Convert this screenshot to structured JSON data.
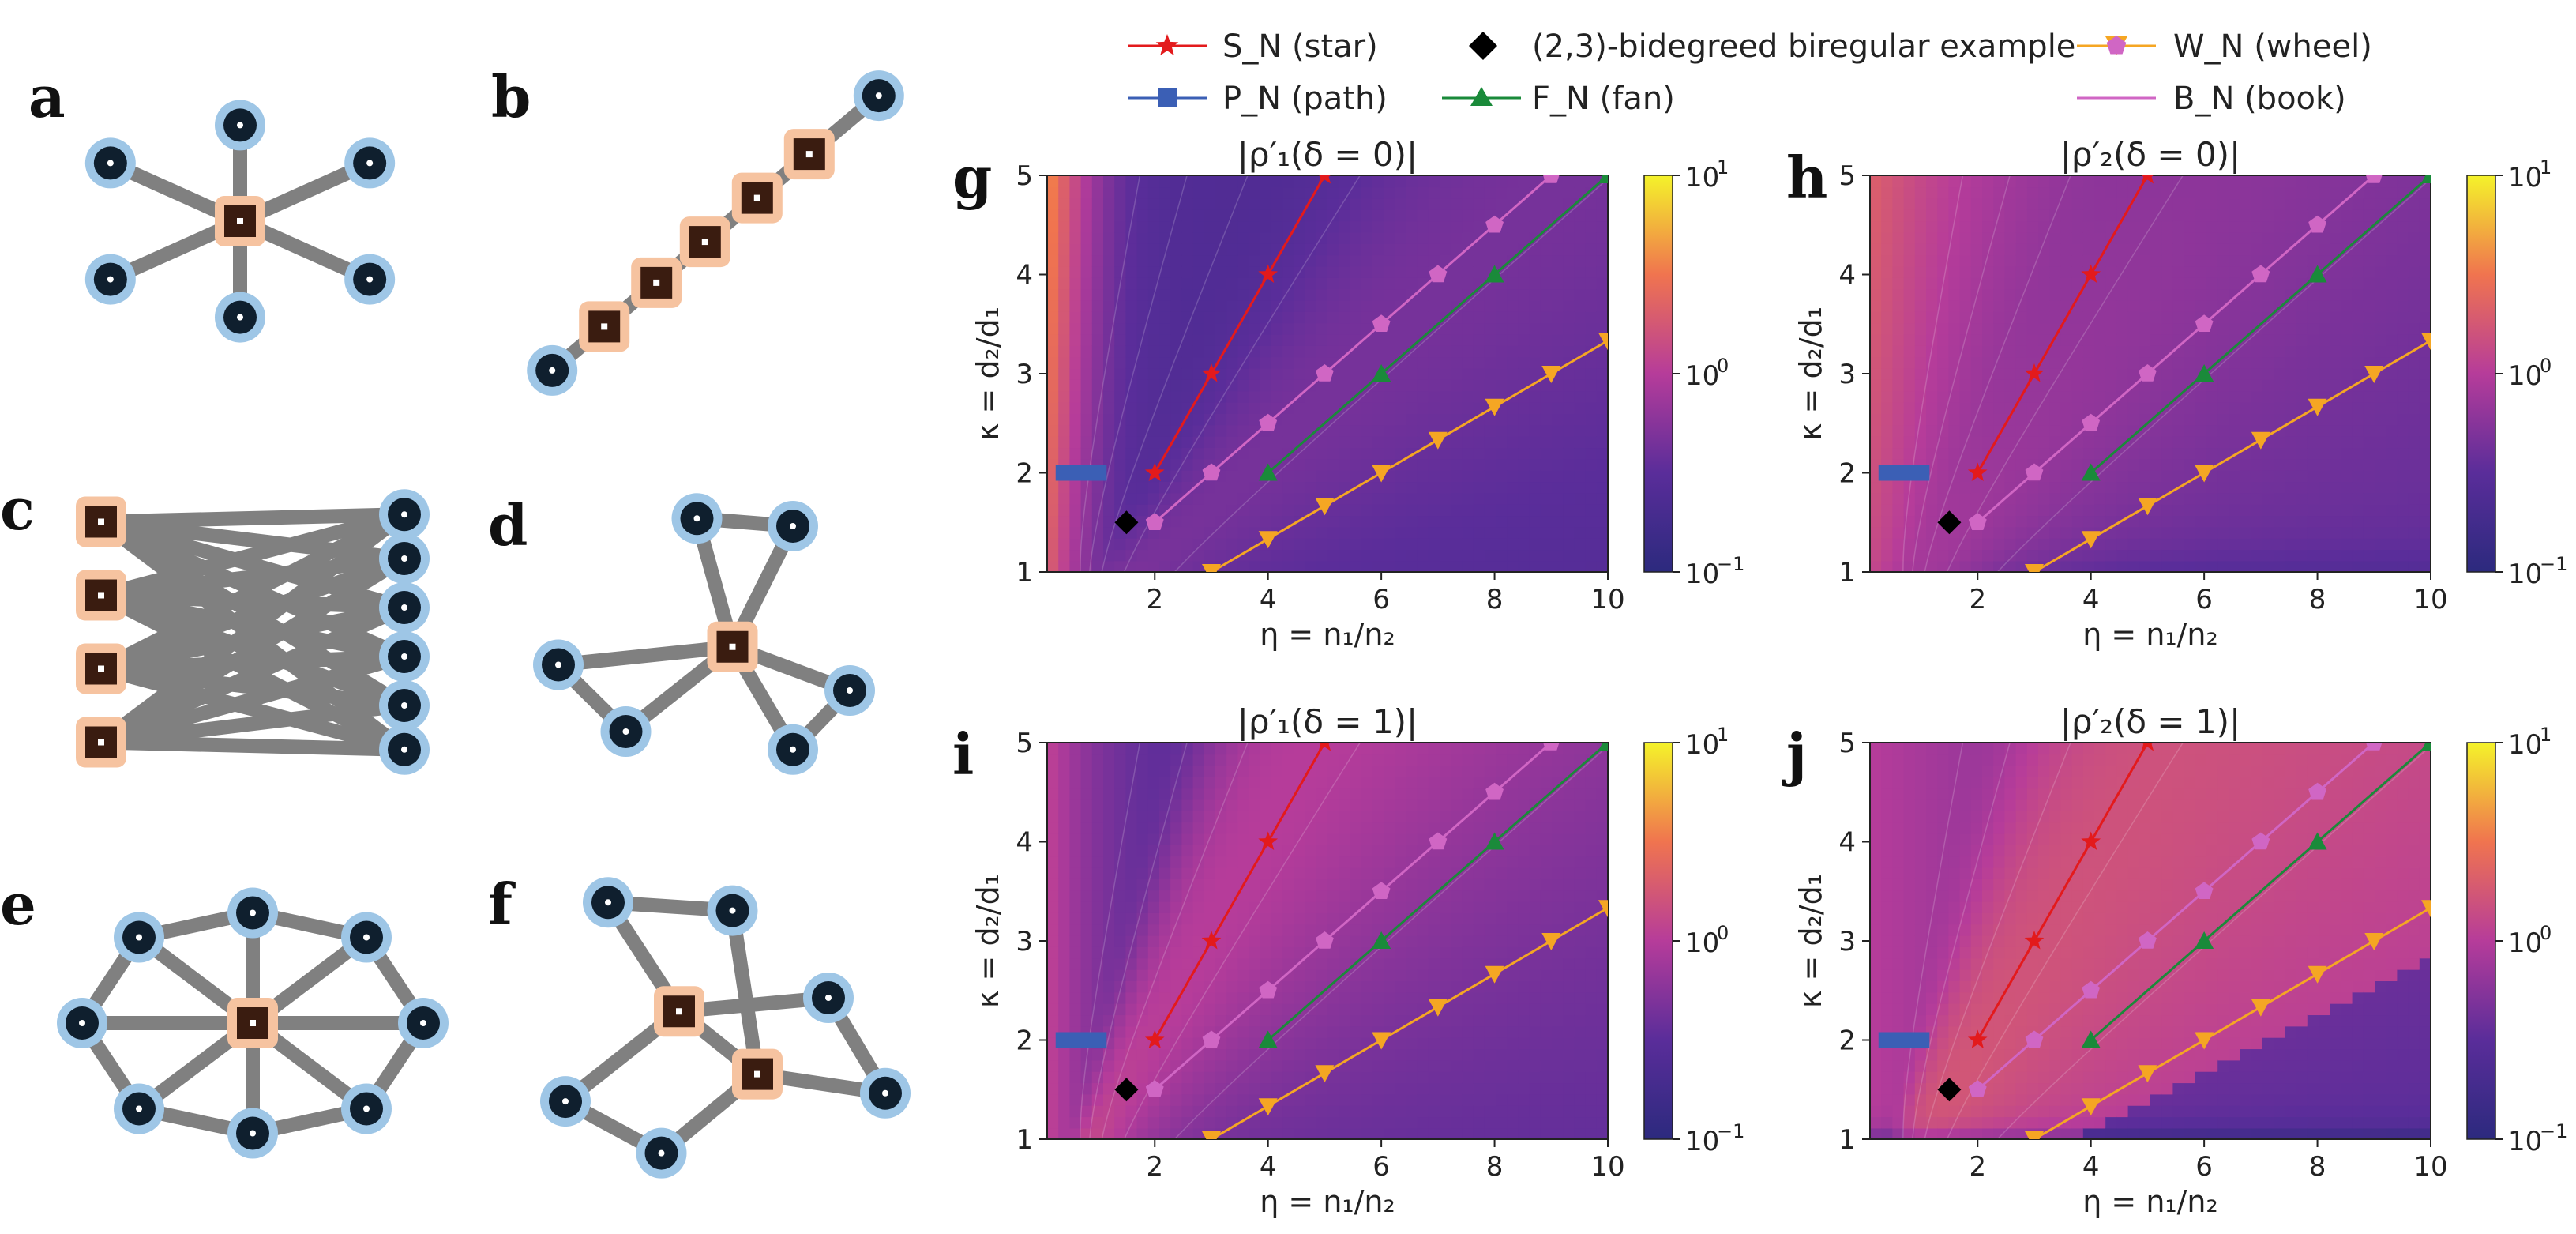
{
  "panel_labels": {
    "a": "a",
    "b": "b",
    "c": "c",
    "d": "d",
    "e": "e",
    "f": "f",
    "g": "g",
    "h": "h",
    "i": "i",
    "j": "j"
  },
  "legend": [
    {
      "id": "star",
      "label": "S_N (star)",
      "color": "#e31a1c",
      "marker": "star"
    },
    {
      "id": "path",
      "label": "P_N (path)",
      "color": "#3b5fb5",
      "marker": "square"
    },
    {
      "id": "bireg",
      "label": "(2,3)-bidegreed biregular example",
      "color": "#000000",
      "marker": "diamond"
    },
    {
      "id": "fan",
      "label": "F_N (fan)",
      "color": "#1a8a3a",
      "marker": "triangle-up"
    },
    {
      "id": "wheel",
      "label": "W_N (wheel)",
      "color": "#f5a623",
      "marker": "triangle-down"
    },
    {
      "id": "book",
      "label": "B_N (book)",
      "color": "#d066c4",
      "marker": "pentagon"
    }
  ],
  "axis_labels": {
    "xlabel": "η = n₁/n₂",
    "ylabel": "κ = d₂/d₁"
  },
  "colorbar_ticks": [
    "10",
    "10",
    "10"
  ],
  "colorbar_exps": [
    "1",
    "0",
    "−1"
  ],
  "graphs": {
    "a": {
      "nodes": [
        [
          0.5,
          0.5,
          "hub"
        ],
        [
          0.5,
          0.12,
          "leaf"
        ],
        [
          0.5,
          0.88,
          "leaf"
        ],
        [
          0.12,
          0.27,
          "leaf"
        ],
        [
          0.88,
          0.27,
          "leaf"
        ],
        [
          0.12,
          0.73,
          "leaf"
        ],
        [
          0.88,
          0.73,
          "leaf"
        ]
      ],
      "edges": [
        [
          0,
          1
        ],
        [
          0,
          2
        ],
        [
          0,
          3
        ],
        [
          0,
          4
        ],
        [
          0,
          5
        ],
        [
          0,
          6
        ]
      ]
    },
    "b": {
      "nodes": [
        [
          0.03,
          0.97,
          "leaf"
        ],
        [
          0.18,
          0.82,
          "hub"
        ],
        [
          0.33,
          0.67,
          "hub"
        ],
        [
          0.47,
          0.53,
          "hub"
        ],
        [
          0.62,
          0.38,
          "hub"
        ],
        [
          0.77,
          0.23,
          "hub"
        ],
        [
          0.97,
          0.03,
          "leaf"
        ]
      ],
      "edges": [
        [
          0,
          1
        ],
        [
          1,
          2
        ],
        [
          2,
          3
        ],
        [
          3,
          4
        ],
        [
          4,
          5
        ],
        [
          5,
          6
        ]
      ]
    },
    "c": {
      "nodes": [
        [
          0.1,
          0.05,
          "hub"
        ],
        [
          0.1,
          0.35,
          "hub"
        ],
        [
          0.1,
          0.65,
          "hub"
        ],
        [
          0.1,
          0.95,
          "hub"
        ],
        [
          0.9,
          0.02,
          "leaf"
        ],
        [
          0.9,
          0.2,
          "leaf"
        ],
        [
          0.9,
          0.4,
          "leaf"
        ],
        [
          0.9,
          0.6,
          "leaf"
        ],
        [
          0.9,
          0.8,
          "leaf"
        ],
        [
          0.9,
          0.98,
          "leaf"
        ]
      ],
      "edges": [
        [
          0,
          4
        ],
        [
          0,
          5
        ],
        [
          0,
          6
        ],
        [
          0,
          7
        ],
        [
          0,
          8
        ],
        [
          0,
          9
        ],
        [
          1,
          4
        ],
        [
          1,
          5
        ],
        [
          1,
          6
        ],
        [
          1,
          7
        ],
        [
          1,
          8
        ],
        [
          1,
          9
        ],
        [
          2,
          4
        ],
        [
          2,
          5
        ],
        [
          2,
          6
        ],
        [
          2,
          7
        ],
        [
          2,
          8
        ],
        [
          2,
          9
        ],
        [
          3,
          4
        ],
        [
          3,
          5
        ],
        [
          3,
          6
        ],
        [
          3,
          7
        ],
        [
          3,
          8
        ],
        [
          3,
          9
        ]
      ]
    },
    "d": {
      "nodes": [
        [
          0.55,
          0.55,
          "hub"
        ],
        [
          0.45,
          0.05,
          "leaf"
        ],
        [
          0.72,
          0.08,
          "leaf"
        ],
        [
          0.06,
          0.62,
          "leaf"
        ],
        [
          0.25,
          0.88,
          "leaf"
        ],
        [
          0.88,
          0.72,
          "leaf"
        ],
        [
          0.72,
          0.95,
          "leaf"
        ]
      ],
      "edges": [
        [
          0,
          1
        ],
        [
          0,
          2
        ],
        [
          1,
          2
        ],
        [
          0,
          3
        ],
        [
          0,
          4
        ],
        [
          3,
          4
        ],
        [
          0,
          5
        ],
        [
          0,
          6
        ],
        [
          5,
          6
        ]
      ]
    },
    "e": {
      "nodes": [
        [
          0.5,
          0.5,
          "hub"
        ],
        [
          0.5,
          0.05,
          "leaf"
        ],
        [
          0.2,
          0.15,
          "leaf"
        ],
        [
          0.8,
          0.15,
          "leaf"
        ],
        [
          0.05,
          0.5,
          "leaf"
        ],
        [
          0.95,
          0.5,
          "leaf"
        ],
        [
          0.2,
          0.85,
          "leaf"
        ],
        [
          0.8,
          0.85,
          "leaf"
        ],
        [
          0.5,
          0.95,
          "leaf"
        ]
      ],
      "edges": [
        [
          0,
          1
        ],
        [
          0,
          2
        ],
        [
          0,
          3
        ],
        [
          0,
          4
        ],
        [
          0,
          5
        ],
        [
          0,
          6
        ],
        [
          0,
          7
        ],
        [
          0,
          8
        ],
        [
          1,
          2
        ],
        [
          2,
          4
        ],
        [
          4,
          6
        ],
        [
          6,
          8
        ],
        [
          8,
          7
        ],
        [
          7,
          5
        ],
        [
          5,
          3
        ],
        [
          3,
          1
        ]
      ]
    },
    "f": {
      "nodes": [
        [
          0.4,
          0.45,
          "hub"
        ],
        [
          0.62,
          0.68,
          "hub"
        ],
        [
          0.2,
          0.05,
          "leaf"
        ],
        [
          0.55,
          0.08,
          "leaf"
        ],
        [
          0.82,
          0.4,
          "leaf"
        ],
        [
          0.98,
          0.75,
          "leaf"
        ],
        [
          0.08,
          0.78,
          "leaf"
        ],
        [
          0.35,
          0.97,
          "leaf"
        ]
      ],
      "edges": [
        [
          0,
          2
        ],
        [
          2,
          3
        ],
        [
          3,
          1
        ],
        [
          0,
          4
        ],
        [
          4,
          5
        ],
        [
          5,
          1
        ],
        [
          0,
          6
        ],
        [
          6,
          7
        ],
        [
          7,
          1
        ],
        [
          0,
          1
        ]
      ]
    }
  },
  "chart_data": [
    {
      "panel": "g",
      "type": "heatmap",
      "title": "|ρ′₁(δ = 0)|",
      "variant": "r1d0",
      "xlim": [
        0.1,
        10
      ],
      "ylim": [
        1,
        5
      ],
      "xticks": [
        2,
        4,
        6,
        8,
        10
      ],
      "yticks": [
        1,
        2,
        3,
        4,
        5
      ],
      "clim": [
        0.1,
        10
      ],
      "color_scale": "log"
    },
    {
      "panel": "h",
      "type": "heatmap",
      "title": "|ρ′₂(δ = 0)|",
      "variant": "r2d0",
      "xlim": [
        0.1,
        10
      ],
      "ylim": [
        1,
        5
      ],
      "xticks": [
        2,
        4,
        6,
        8,
        10
      ],
      "yticks": [
        1,
        2,
        3,
        4,
        5
      ],
      "clim": [
        0.1,
        10
      ],
      "color_scale": "log"
    },
    {
      "panel": "i",
      "type": "heatmap",
      "title": "|ρ′₁(δ = 1)|",
      "variant": "r1d1",
      "xlim": [
        0.1,
        10
      ],
      "ylim": [
        1,
        5
      ],
      "xticks": [
        2,
        4,
        6,
        8,
        10
      ],
      "yticks": [
        1,
        2,
        3,
        4,
        5
      ],
      "clim": [
        0.1,
        10
      ],
      "color_scale": "log"
    },
    {
      "panel": "j",
      "type": "heatmap",
      "title": "|ρ′₂(δ = 1)|",
      "variant": "r2d1",
      "xlim": [
        0.1,
        10
      ],
      "ylim": [
        1,
        5
      ],
      "xticks": [
        2,
        4,
        6,
        8,
        10
      ],
      "yticks": [
        1,
        2,
        3,
        4,
        5
      ],
      "clim": [
        0.1,
        10
      ],
      "color_scale": "log"
    }
  ],
  "series": {
    "star": {
      "x": [
        2,
        3,
        4,
        5
      ],
      "y": [
        2,
        3,
        4,
        5
      ]
    },
    "book": {
      "x": [
        2,
        3,
        4,
        5,
        6,
        7,
        8,
        9
      ],
      "y": [
        1.5,
        2,
        2.5,
        3,
        3.5,
        4,
        4.5,
        5
      ]
    },
    "fan": {
      "x": [
        4,
        6,
        8,
        10
      ],
      "y": [
        2,
        3,
        4,
        5
      ]
    },
    "wheel": {
      "x": [
        3,
        4,
        5,
        6,
        7,
        8,
        9,
        10
      ],
      "y": [
        1,
        1.333,
        1.667,
        2,
        2.333,
        2.667,
        3,
        3.333
      ]
    },
    "bireg": {
      "x": [
        1.5
      ],
      "y": [
        1.5
      ]
    },
    "path": {
      "x": [
        0.25,
        1.15
      ],
      "y": [
        2,
        2
      ]
    }
  }
}
